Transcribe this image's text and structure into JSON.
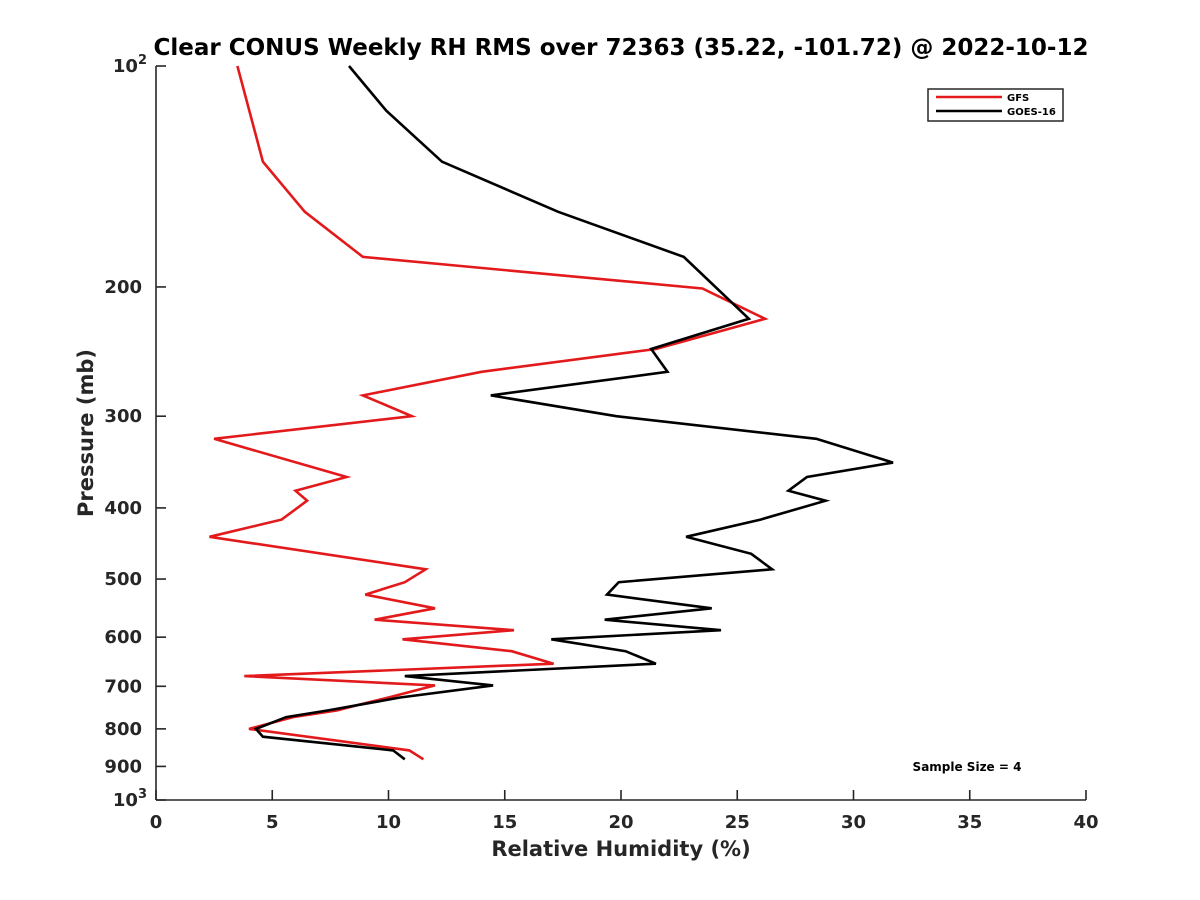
{
  "chart_data": {
    "type": "line",
    "title": "Clear CONUS Weekly RH RMS over 72363 (35.22, -101.72) @ 2022-10-12",
    "xlabel": "Relative Humidity (%)",
    "ylabel": "Pressure (mb)",
    "xlim": [
      0,
      40
    ],
    "ylim": [
      100,
      1000
    ],
    "y_scale": "log",
    "y_reversed": true,
    "x_ticks": [
      0,
      5,
      10,
      15,
      20,
      25,
      30,
      35,
      40
    ],
    "y_ticks": [
      {
        "value": 100,
        "label": "10",
        "sup": "2"
      },
      {
        "value": 200,
        "label": "200"
      },
      {
        "value": 300,
        "label": "300"
      },
      {
        "value": 400,
        "label": "400"
      },
      {
        "value": 500,
        "label": "500"
      },
      {
        "value": 600,
        "label": "600"
      },
      {
        "value": 700,
        "label": "700"
      },
      {
        "value": 800,
        "label": "800"
      },
      {
        "value": 900,
        "label": "900"
      },
      {
        "value": 1000,
        "label": "10",
        "sup": "3"
      }
    ],
    "legend_position": "top-right",
    "series": [
      {
        "name": "GFS",
        "color": "#e31a1c",
        "points": [
          [
            3.5,
            100
          ],
          [
            4.6,
            135
          ],
          [
            6.4,
            158
          ],
          [
            8.9,
            182
          ],
          [
            23.5,
            201
          ],
          [
            26.2,
            221
          ],
          [
            21.5,
            243
          ],
          [
            14.0,
            261
          ],
          [
            8.9,
            281
          ],
          [
            11.0,
            300
          ],
          [
            2.5,
            322
          ],
          [
            8.2,
            363
          ],
          [
            6.0,
            379
          ],
          [
            6.5,
            391
          ],
          [
            5.4,
            415
          ],
          [
            2.3,
            438
          ],
          [
            11.6,
            485
          ],
          [
            10.7,
            505
          ],
          [
            9.0,
            525
          ],
          [
            12.0,
            548
          ],
          [
            9.4,
            568
          ],
          [
            15.4,
            587
          ],
          [
            10.6,
            604
          ],
          [
            15.3,
            627
          ],
          [
            17.1,
            652
          ],
          [
            3.8,
            678
          ],
          [
            12.0,
            698
          ],
          [
            10.0,
            725
          ],
          [
            8.7,
            742
          ],
          [
            7.8,
            755
          ],
          [
            5.9,
            771
          ],
          [
            4.0,
            800
          ],
          [
            10.9,
            856
          ],
          [
            11.5,
            880
          ]
        ]
      },
      {
        "name": "GOES-16",
        "color": "#000000",
        "points": [
          [
            8.3,
            100
          ],
          [
            9.9,
            115
          ],
          [
            12.3,
            135
          ],
          [
            17.3,
            158
          ],
          [
            22.7,
            182
          ],
          [
            25.5,
            221
          ],
          [
            21.3,
            243
          ],
          [
            22.0,
            261
          ],
          [
            14.4,
            281
          ],
          [
            19.8,
            300
          ],
          [
            28.4,
            322
          ],
          [
            31.7,
            347
          ],
          [
            28.0,
            363
          ],
          [
            27.2,
            379
          ],
          [
            28.8,
            391
          ],
          [
            26.0,
            415
          ],
          [
            22.8,
            438
          ],
          [
            25.6,
            462
          ],
          [
            26.5,
            485
          ],
          [
            19.9,
            505
          ],
          [
            19.4,
            525
          ],
          [
            23.9,
            548
          ],
          [
            19.3,
            568
          ],
          [
            24.3,
            587
          ],
          [
            17.0,
            604
          ],
          [
            20.2,
            627
          ],
          [
            21.5,
            652
          ],
          [
            10.7,
            678
          ],
          [
            14.5,
            698
          ],
          [
            10.5,
            725
          ],
          [
            7.4,
            755
          ],
          [
            5.6,
            771
          ],
          [
            4.3,
            800
          ],
          [
            4.6,
            820
          ],
          [
            10.2,
            856
          ],
          [
            10.7,
            880
          ]
        ]
      }
    ],
    "annotation": "Sample Size = 4"
  }
}
